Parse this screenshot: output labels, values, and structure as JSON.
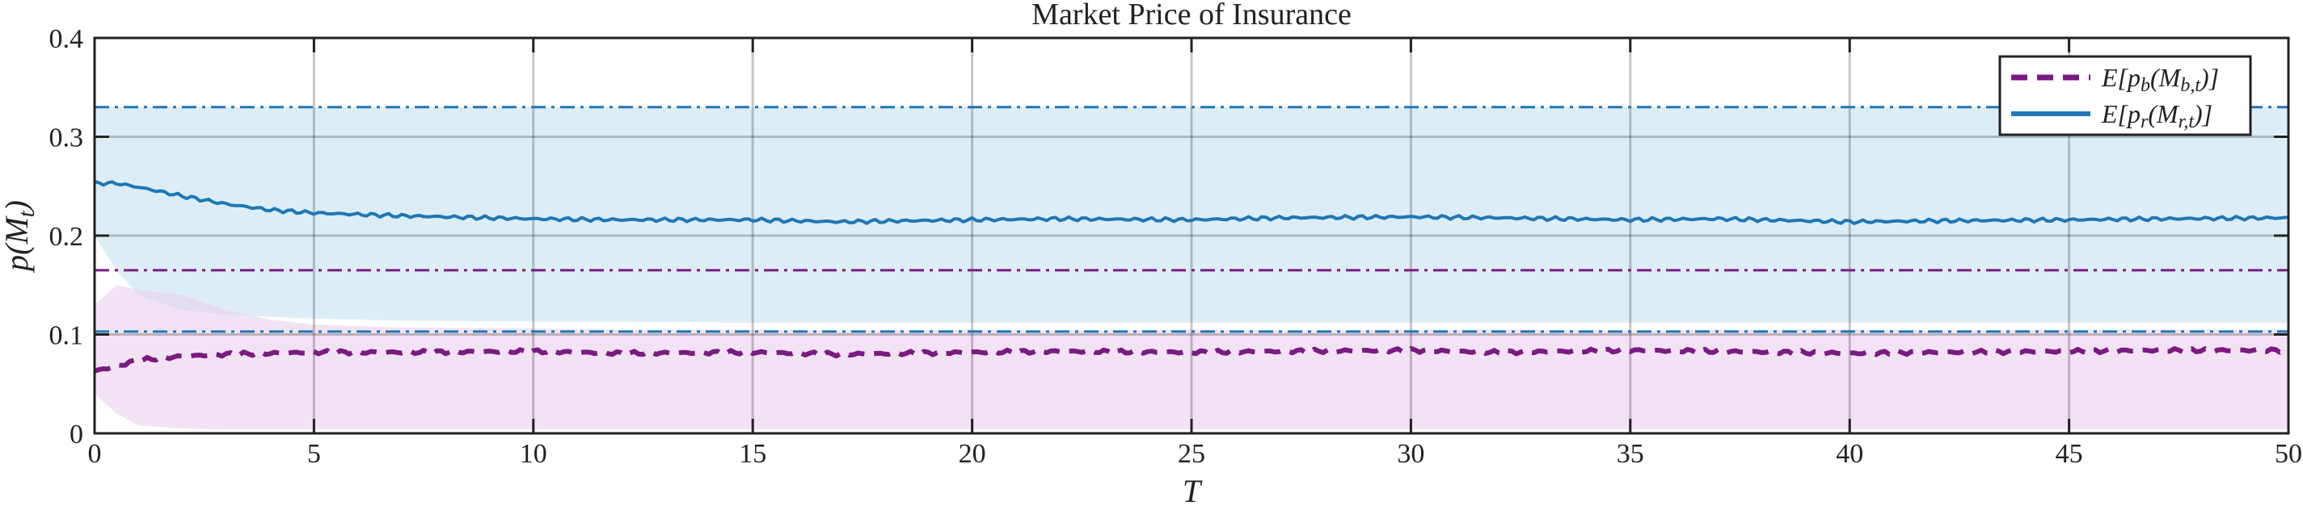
{
  "chart_data": {
    "type": "line",
    "title": "Market Price of Insurance",
    "xlabel": "T",
    "ylabel": "p(M_t)",
    "xlim": [
      0,
      50
    ],
    "ylim": [
      0,
      0.4
    ],
    "xticks": [
      0,
      5,
      10,
      15,
      20,
      25,
      30,
      35,
      40,
      45,
      50
    ],
    "yticks": [
      0,
      0.1,
      0.2,
      0.3,
      0.4
    ],
    "grid": true,
    "legend_position": "top-right",
    "colors": {
      "blue": "#1f77b4",
      "purple": "#7b1a82",
      "blue_band": "#cfe5f2",
      "purple_band": "#ead0ec"
    },
    "series": [
      {
        "name": "E[p_b(M_{b,t})]",
        "style": "dashed",
        "color": "#7b1a82",
        "x": [
          0,
          0.5,
          1,
          2,
          3,
          4,
          5,
          7,
          10,
          12,
          15,
          17,
          20,
          22,
          25,
          27,
          30,
          32,
          35,
          37,
          40,
          42,
          45,
          47,
          50
        ],
        "y": [
          0.063,
          0.068,
          0.074,
          0.078,
          0.08,
          0.081,
          0.082,
          0.082,
          0.083,
          0.081,
          0.082,
          0.08,
          0.082,
          0.083,
          0.082,
          0.083,
          0.084,
          0.082,
          0.084,
          0.083,
          0.081,
          0.082,
          0.083,
          0.084,
          0.084
        ],
        "band_upper": [
          0.13,
          0.15,
          0.145,
          0.14,
          0.125,
          0.115,
          0.11,
          0.107,
          0.106,
          0.105,
          0.105,
          0.104,
          0.105,
          0.104,
          0.105,
          0.104,
          0.105,
          0.105,
          0.104,
          0.105,
          0.105,
          0.104,
          0.105,
          0.105,
          0.105
        ],
        "band_lower": [
          0.04,
          0.02,
          0.008,
          0.005,
          0.004,
          0.004,
          0.004,
          0.004,
          0.004,
          0.004,
          0.004,
          0.004,
          0.004,
          0.004,
          0.004,
          0.004,
          0.004,
          0.004,
          0.004,
          0.004,
          0.004,
          0.004,
          0.004,
          0.004,
          0.004
        ],
        "reference_lines": [
          0,
          0.165
        ]
      },
      {
        "name": "E[p_r(M_{r,t})]",
        "style": "solid",
        "color": "#1f77b4",
        "x": [
          0,
          0.5,
          1,
          2,
          3,
          4,
          5,
          7,
          10,
          12,
          15,
          17,
          20,
          22,
          25,
          27,
          30,
          32,
          35,
          37,
          40,
          42,
          45,
          47,
          50
        ],
        "y": [
          0.253,
          0.253,
          0.249,
          0.24,
          0.232,
          0.226,
          0.223,
          0.22,
          0.217,
          0.216,
          0.216,
          0.214,
          0.216,
          0.217,
          0.216,
          0.218,
          0.219,
          0.218,
          0.216,
          0.217,
          0.214,
          0.215,
          0.216,
          0.217,
          0.218
        ],
        "band_upper": [
          0.33,
          0.33,
          0.33,
          0.33,
          0.33,
          0.33,
          0.33,
          0.33,
          0.33,
          0.33,
          0.33,
          0.33,
          0.33,
          0.33,
          0.33,
          0.33,
          0.33,
          0.33,
          0.33,
          0.33,
          0.33,
          0.33,
          0.33,
          0.33,
          0.33
        ],
        "band_lower": [
          0.2,
          0.165,
          0.14,
          0.125,
          0.12,
          0.118,
          0.116,
          0.114,
          0.113,
          0.113,
          0.112,
          0.112,
          0.112,
          0.112,
          0.112,
          0.112,
          0.112,
          0.112,
          0.112,
          0.112,
          0.112,
          0.112,
          0.112,
          0.112,
          0.112
        ],
        "reference_lines": [
          0.103,
          0.33
        ]
      }
    ]
  }
}
